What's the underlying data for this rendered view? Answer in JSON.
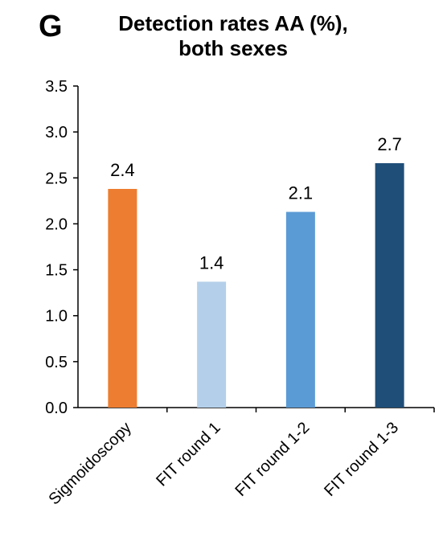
{
  "panel_label": "G",
  "chart_data": {
    "type": "bar",
    "title": "Detection rates AA (%), both sexes",
    "title_lines": [
      "Detection rates AA (%),",
      "both sexes"
    ],
    "xlabel": "",
    "ylabel": "",
    "categories": [
      "Sigmoidoscopy",
      "FIT round 1",
      "FIT round 1-2",
      "FIT round 1-3"
    ],
    "values": [
      2.38,
      1.37,
      2.13,
      2.66
    ],
    "data_labels": [
      "2.4",
      "1.4",
      "2.1",
      "2.7"
    ],
    "colors": [
      "#ED7D31",
      "#B4CFEA",
      "#5B9BD5",
      "#1F4E79"
    ],
    "ylim": [
      0,
      3.5
    ],
    "yticks": [
      "0.0",
      "0.5",
      "1.0",
      "1.5",
      "2.0",
      "2.5",
      "3.0",
      "3.5"
    ],
    "grid": false,
    "legend": "none"
  }
}
